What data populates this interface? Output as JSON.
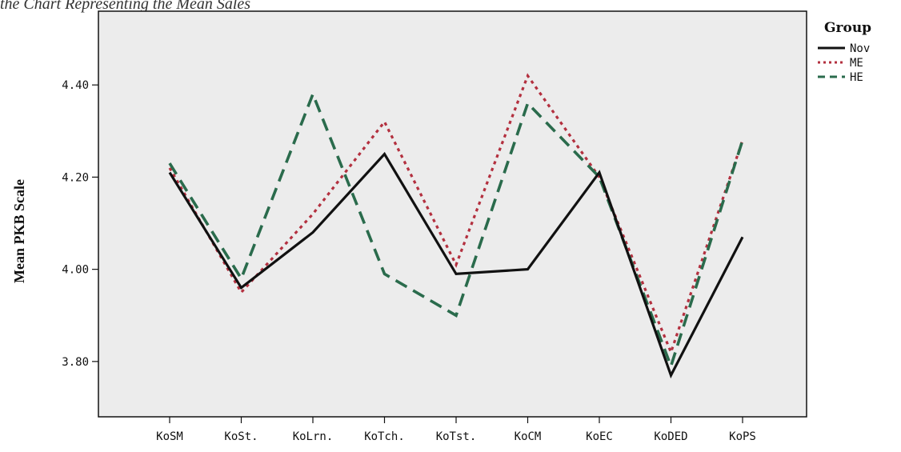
{
  "caption": "the Chart Representing the Mean Sales",
  "chart_data": {
    "type": "line",
    "ylabel": "Mean PKB Scale",
    "xlabel": "",
    "categories": [
      "KoSM",
      "KoSt.",
      "KoLrn.",
      "KoTch.",
      "KoTst.",
      "KoCM",
      "KoEC",
      "KoDED",
      "KoPS"
    ],
    "ylim": [
      3.68,
      4.56
    ],
    "yticks": [
      3.8,
      4.0,
      4.2,
      4.4
    ],
    "ytick_labels": [
      "3.80",
      "4.00",
      "4.20",
      "4.40"
    ],
    "grid": false,
    "legend": {
      "title": "Group",
      "position": "right"
    },
    "series": [
      {
        "name": "Nov",
        "color": "#111111",
        "dash": "solid",
        "values": [
          4.21,
          3.96,
          4.08,
          4.25,
          3.99,
          4.0,
          4.21,
          3.77,
          4.07
        ]
      },
      {
        "name": "ME",
        "color": "#b3303f",
        "dash": "dotted",
        "values": [
          4.22,
          3.95,
          4.12,
          4.32,
          4.01,
          4.42,
          4.2,
          3.82,
          4.28
        ]
      },
      {
        "name": "HE",
        "color": "#2a6b4c",
        "dash": "dashed",
        "values": [
          4.23,
          3.98,
          4.38,
          3.99,
          3.9,
          4.36,
          4.2,
          3.79,
          4.28
        ]
      }
    ]
  }
}
